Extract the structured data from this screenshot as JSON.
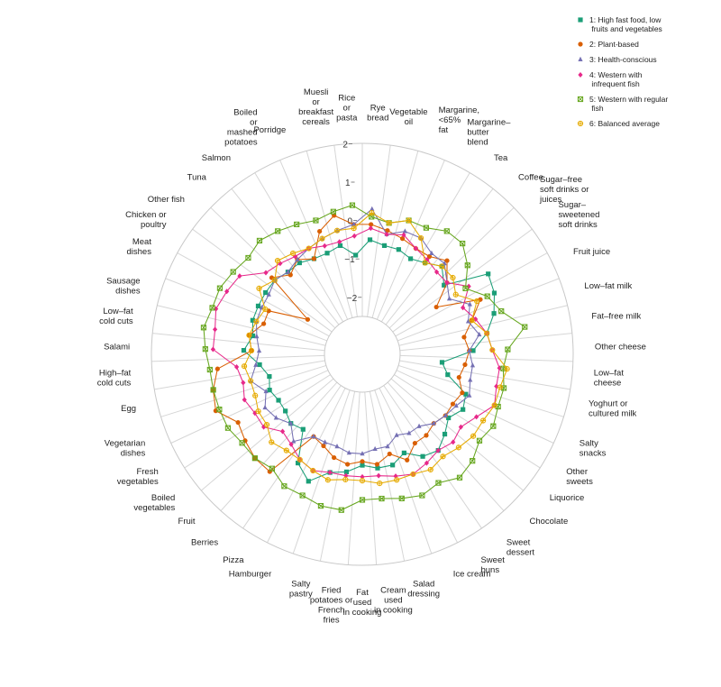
{
  "chart_data": {
    "type": "radar",
    "title": "",
    "axis": {
      "min": -2.5,
      "max": 2,
      "ticks": [
        -2,
        -1,
        0,
        1,
        2
      ],
      "tick_labels": [
        "−2",
        "−1",
        "0",
        "1",
        "2"
      ]
    },
    "categories": [
      "Rye\nbread",
      "Vegetable\noil",
      "Margarine,\n<65%\nfat",
      "Margarine–\nbutter\nblend",
      "Tea",
      "Coffee",
      "Sugar–free\nsoft drinks or\njuices",
      "Sugar–\nsweetened\nsoft drinks",
      "Fruit juice",
      "Low–fat milk",
      "Fat–free milk",
      "Other cheese",
      "Low–fat\ncheese",
      "Yoghurt or\ncultured milk",
      "Salty\nsnacks",
      "Other\nsweets",
      "Liquorice",
      "Chocolate",
      "Sweet\ndessert",
      "Sweet\nbuns",
      "Ice cream",
      "Salad\ndressing",
      "Cream\nused\nin cooking",
      "Fat\nused\nin cooking",
      "Fried\npotatoes or\nFrench\nfries",
      "Salty\npastry",
      "Hamburger",
      "Pizza",
      "Berries",
      "Fruit",
      "Boiled\nvegetables",
      "Fresh\nvegetables",
      "Vegetarian\ndishes",
      "Egg",
      "High–fat\ncold cuts",
      "Salami",
      "Low–fat\ncold cuts",
      "Sausage\ndishes",
      "Meat\ndishes",
      "Chicken or\npoultry",
      "Other fish",
      "Tuna",
      "Salmon",
      "Boiled\nor\nmashed\npotatoes",
      "Porridge",
      "Muesli\nor\nbreakfast\ncereals",
      "Rice\nor\npasta"
    ],
    "series": [
      {
        "name": "1: High fast food, low fruits and vegetables",
        "color": "#1b9e77",
        "marker": "square",
        "values": [
          -0.5,
          -0.6,
          -0.6,
          -0.7,
          -0.6,
          -0.4,
          -0.7,
          0.4,
          0.3,
          0.1,
          -0.2,
          -0.6,
          -1.4,
          -1.2,
          -0.6,
          -0.5,
          -0.7,
          -0.5,
          -0.3,
          -0.4,
          -0.7,
          -0.5,
          -0.5,
          -0.6,
          -0.4,
          -0.3,
          0.1,
          -0.2,
          -1.0,
          -0.9,
          -1.0,
          -1.0,
          -0.9,
          -1.0,
          -0.8,
          -0.4,
          -0.6,
          -0.5,
          -0.5,
          -0.5,
          -0.5,
          -0.6,
          -0.6,
          -0.7,
          -0.7,
          -0.6,
          -0.9
        ]
      },
      {
        "name": "2: Plant-based",
        "color": "#d95f02",
        "marker": "circle",
        "values": [
          -0.1,
          -0.2,
          -0.3,
          -0.4,
          -0.4,
          -0.2,
          -0.6,
          -1.2,
          -0.1,
          -0.5,
          -0.8,
          -0.7,
          -0.8,
          -0.9,
          -0.7,
          -0.8,
          -0.8,
          -0.9,
          -0.8,
          -0.8,
          -0.5,
          -0.8,
          -0.6,
          -0.7,
          -0.6,
          -0.7,
          -0.9,
          -1.0,
          0.4,
          0.4,
          0.3,
          0.2,
          0.6,
          0.5,
          0.3,
          -0.6,
          -0.5,
          -0.8,
          -0.8,
          -1.8,
          -0.4,
          -0.7,
          -0.5,
          -0.7,
          -0.1,
          0.2,
          -0.1
        ]
      },
      {
        "name": "3: Health-conscious",
        "color": "#7570b3",
        "marker": "triangle",
        "values": [
          0.3,
          -0.3,
          -0.1,
          -0.1,
          -0.3,
          -0.3,
          -0.6,
          -0.8,
          -0.4,
          -0.6,
          -0.4,
          -0.7,
          -0.6,
          -0.6,
          -0.5,
          -0.7,
          -0.8,
          -0.9,
          -1.1,
          -1.1,
          -1.2,
          -1.0,
          -1.0,
          -0.9,
          -0.9,
          -1.0,
          -1.0,
          -1.0,
          -0.6,
          -0.9,
          -0.7,
          -0.6,
          -0.8,
          -0.5,
          -0.7,
          -0.8,
          -0.7,
          -0.6,
          -0.6,
          -0.6,
          -0.5,
          -0.6,
          -0.5,
          -0.4,
          -0.3,
          -0.2,
          -0.1
        ]
      },
      {
        "name": "4: Western with infrequent fish",
        "color": "#e7298a",
        "marker": "diamond",
        "values": [
          -0.2,
          -0.3,
          -0.2,
          -0.4,
          -0.5,
          -0.6,
          -0.6,
          -0.2,
          -0.6,
          -0.4,
          -0.2,
          -0.1,
          0.1,
          0.1,
          0.2,
          -0.1,
          -0.3,
          -0.2,
          -0.3,
          -0.2,
          -0.1,
          -0.2,
          -0.3,
          -0.3,
          -0.3,
          -0.3,
          -0.2,
          -0.3,
          -0.5,
          -0.6,
          -0.3,
          -0.3,
          -0.2,
          -0.3,
          -0.2,
          0.4,
          0.4,
          0.5,
          0.4,
          0.3,
          -0.2,
          -0.3,
          -0.4,
          -0.4,
          -0.5,
          -0.5,
          -0.4
        ]
      },
      {
        "name": "5: Western with regular fish",
        "color": "#66a61e",
        "marker": "boxx",
        "values": [
          0.1,
          0.0,
          0.2,
          0.2,
          0.4,
          0.4,
          0.1,
          -0.3,
          0.1,
          0.3,
          0.8,
          0.3,
          0.2,
          0.3,
          0.3,
          0.4,
          0.3,
          0.5,
          0.6,
          0.4,
          0.5,
          0.4,
          0.3,
          0.3,
          0.6,
          0.6,
          0.5,
          0.5,
          0.3,
          0.4,
          0.4,
          0.5,
          0.5,
          0.5,
          0.5,
          0.6,
          0.7,
          0.6,
          0.6,
          0.5,
          0.4,
          0.5,
          0.4,
          0.3,
          0.2,
          0.3,
          0.4
        ]
      },
      {
        "name": "6: Balanced average",
        "color": "#e6ab02",
        "marker": "circleplus",
        "values": [
          0.2,
          0.0,
          0.2,
          -0.1,
          -0.6,
          -0.4,
          -0.4,
          -0.6,
          -0.2,
          -0.5,
          -0.2,
          -0.1,
          0.3,
          0.2,
          0.2,
          0.1,
          0.1,
          0.0,
          -0.1,
          0.0,
          -0.1,
          -0.1,
          -0.1,
          -0.2,
          -0.2,
          -0.1,
          -0.2,
          -0.3,
          -0.3,
          -0.2,
          -0.4,
          -0.4,
          -0.5,
          -0.5,
          -0.4,
          -0.6,
          -0.5,
          -0.6,
          -0.7,
          -0.3,
          -0.5,
          -0.2,
          -0.3,
          -0.4,
          -0.3,
          -0.2,
          -0.2
        ]
      }
    ],
    "legend_position": "top-right"
  }
}
